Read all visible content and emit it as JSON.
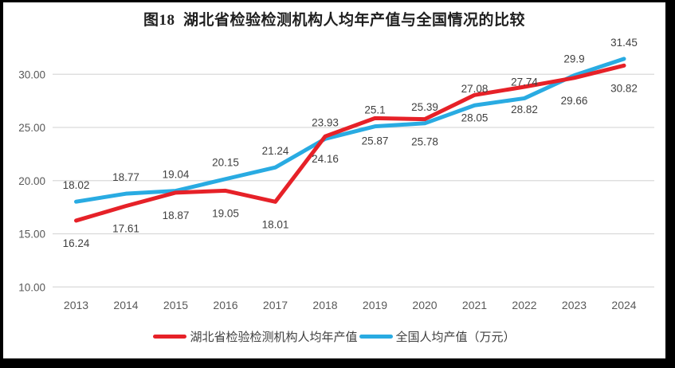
{
  "chart_data": {
    "type": "line",
    "title": "图18  湖北省检验检测机构人均年产值与全国情况的比较",
    "categories": [
      "2013",
      "2014",
      "2015",
      "2016",
      "2017",
      "2018",
      "2019",
      "2020",
      "2021",
      "2022",
      "2023",
      "2024"
    ],
    "series": [
      {
        "name": "湖北省检验检测机构人均年产值",
        "color": "#e62128",
        "label_position": "below",
        "values": [
          16.24,
          17.61,
          18.87,
          19.05,
          18.01,
          24.16,
          25.87,
          25.78,
          28.05,
          28.82,
          29.66,
          30.82
        ]
      },
      {
        "name": "全国人均产值（万元）",
        "color": "#29abe2",
        "label_position": "above",
        "values": [
          18.02,
          18.77,
          19.04,
          20.15,
          21.24,
          23.93,
          25.1,
          25.39,
          27.08,
          27.74,
          29.9,
          31.45
        ]
      }
    ],
    "y_axis": {
      "tick_values": [
        30,
        25,
        20,
        15,
        10
      ],
      "tick_labels": [
        "30.00",
        "25.00",
        "20.00",
        "15.00",
        "10.00"
      ]
    },
    "ylim": [
      10,
      32.5
    ],
    "grid": true,
    "legend_position": "bottom",
    "colors": {
      "title_text": "#1f1f1f",
      "axis_text": "#595959",
      "data_label_text": "#404040",
      "legend_text": "#404040",
      "gridline": "#d9d9d9",
      "plot_background": "#ffffff",
      "outer_frame": "#000000"
    }
  }
}
